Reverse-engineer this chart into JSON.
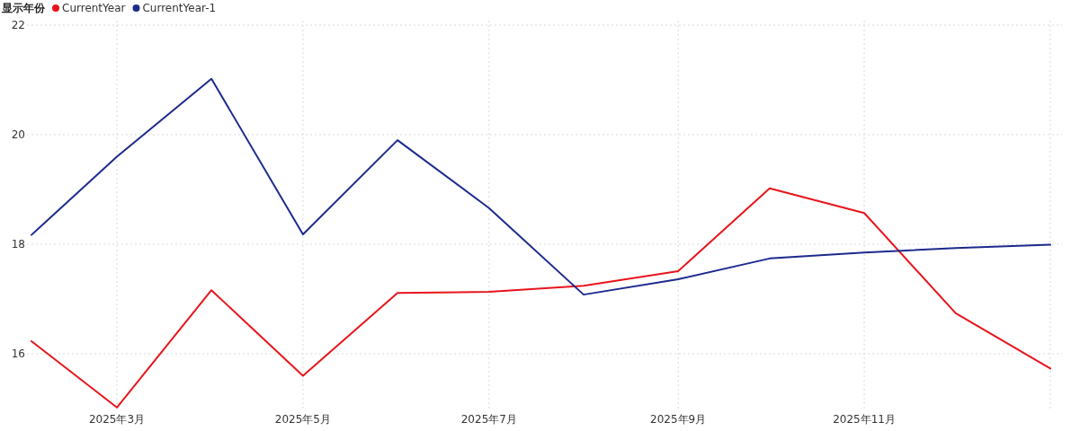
{
  "chart_data": {
    "type": "line",
    "legend_title": "显示年份",
    "legend": "top left",
    "grid": true,
    "x": [
      "2025-02",
      "2025-03",
      "2025-04",
      "2025-05",
      "2025-06",
      "2025-07",
      "2025-08",
      "2025-09",
      "2025-10",
      "2025-11",
      "2025-12",
      "2026-01"
    ],
    "xlim": [
      "2025-02",
      "2026-01"
    ],
    "xticks": [
      {
        "value": "2025-03",
        "label": "2025年3月"
      },
      {
        "value": "2025-05",
        "label": "2025年5月"
      },
      {
        "value": "2025-07",
        "label": "2025年7月"
      },
      {
        "value": "2025-09",
        "label": "2025年9月"
      },
      {
        "value": "2025-11",
        "label": "2025年11月"
      },
      {
        "value": "2026-01",
        "label": null
      }
    ],
    "ylim": [
      15,
      22
    ],
    "yticks": [
      16,
      18,
      20,
      22
    ],
    "series": [
      {
        "name": "CurrentYear",
        "color": "#e8141b",
        "values": [
          16.23,
          15.02,
          17.16,
          15.6,
          17.11,
          17.13,
          17.24,
          17.51,
          19.02,
          18.57,
          16.74,
          15.73
        ]
      },
      {
        "name": "CurrentYear-1",
        "color": "#1c2a8c",
        "values": [
          18.17,
          19.6,
          21.02,
          18.18,
          19.9,
          18.66,
          17.08,
          17.36,
          17.74,
          17.85,
          17.93,
          17.99
        ]
      }
    ]
  }
}
